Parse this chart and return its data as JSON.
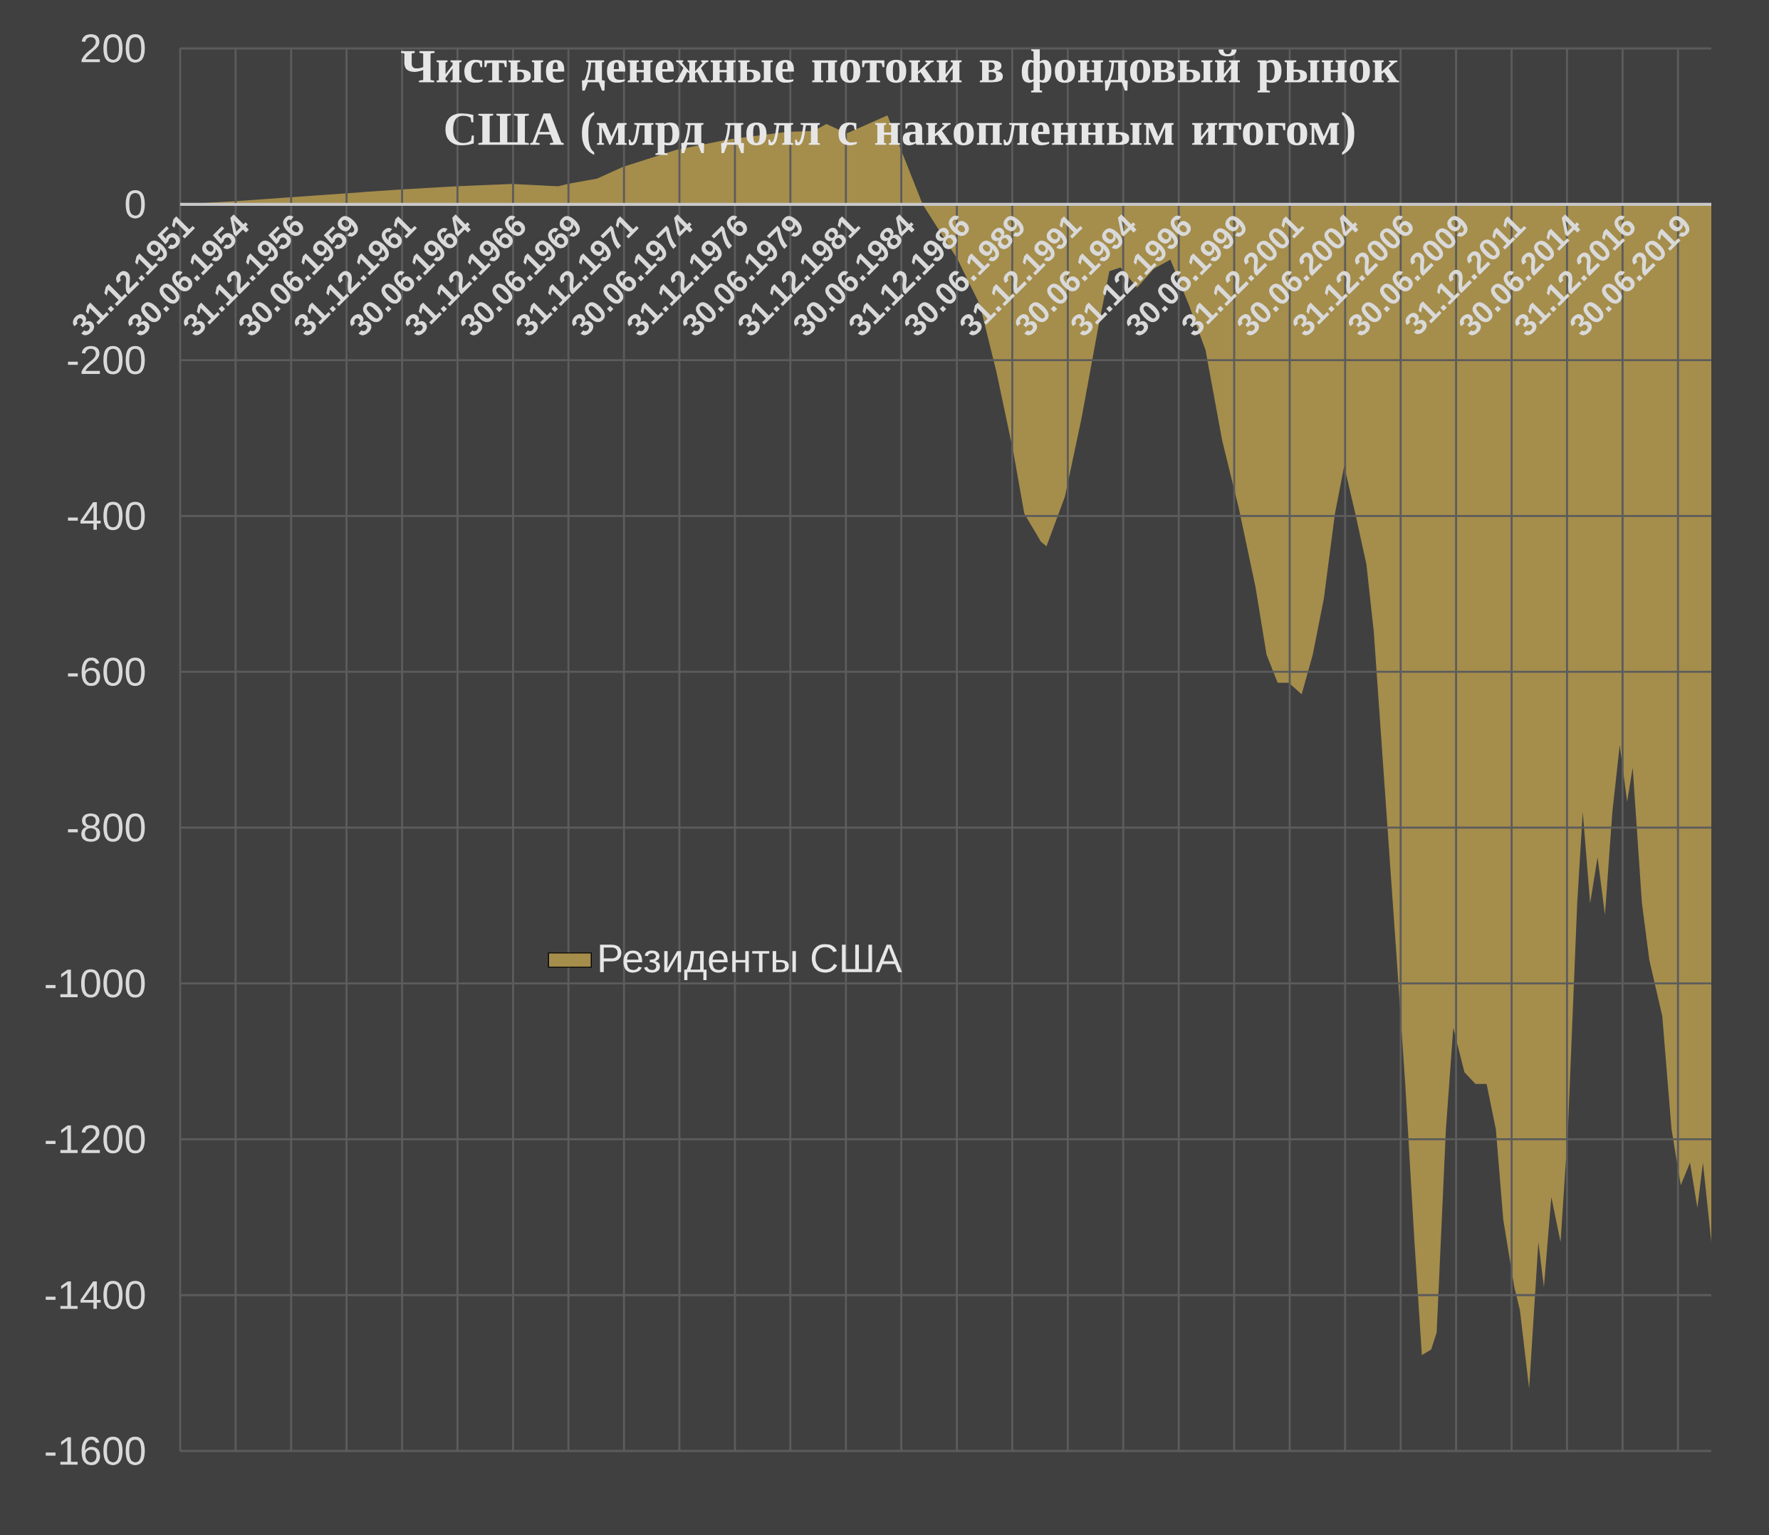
{
  "chart_data": {
    "type": "area",
    "title": "Чистые денежные потоки в фондовый рынок США (млрд долл с накопленным итогом)",
    "x": [
      "1951-12-31",
      "1954-06",
      "1956-12",
      "1959-06",
      "1961-12",
      "1964-06",
      "1966-12",
      "1969-01",
      "1969-06",
      "1970-10",
      "1971-12",
      "1974-05",
      "1976-11",
      "1979-05",
      "1980-07",
      "1981-02",
      "1982-01",
      "1983-11",
      "1985-06",
      "1987-01",
      "1988-01",
      "1988-10",
      "1989-07",
      "1990-01",
      "1990-10",
      "1991-01",
      "1991-11",
      "1992-08",
      "1993-05",
      "1993-11",
      "1994-05",
      "1995-02",
      "1995-11",
      "1996-08",
      "1997-06",
      "1998-03",
      "1998-12",
      "1999-09",
      "2000-06",
      "2000-12",
      "2001-06",
      "2001-12",
      "2002-07",
      "2003-01",
      "2003-07",
      "2004-01",
      "2004-06",
      "2004-12",
      "2005-06",
      "2005-10",
      "2006-04",
      "2006-10",
      "2007-03",
      "2007-08",
      "2007-12",
      "2008-05",
      "2008-08",
      "2009-01",
      "2009-05",
      "2009-11",
      "2010-05",
      "2010-11",
      "2011-04",
      "2011-08",
      "2012-02",
      "2012-05",
      "2012-10",
      "2013-03",
      "2013-06",
      "2013-10",
      "2014-03",
      "2014-07",
      "2014-12",
      "2015-03",
      "2015-07",
      "2015-11",
      "2016-03",
      "2016-07",
      "2016-11",
      "2017-03",
      "2017-06",
      "2017-11",
      "2018-03",
      "2018-10",
      "2019-03",
      "2019-08",
      "2020-01",
      "2020-05",
      "2020-08",
      "2020-12-31"
    ],
    "series": [
      {
        "name": "Резиденты США",
        "color": "#a58d4c",
        "values": [
          0,
          4,
          9,
          14,
          19,
          23,
          26,
          23,
          26,
          33,
          48,
          70,
          84,
          93,
          94,
          103,
          91,
          114,
          0,
          -71,
          -129,
          -216,
          -317,
          -397,
          -433,
          -439,
          -375,
          -274,
          -158,
          -86,
          -81,
          -107,
          -83,
          -71,
          -129,
          -187,
          -303,
          -390,
          -491,
          -578,
          -614,
          -614,
          -629,
          -578,
          -506,
          -397,
          -336,
          -397,
          -462,
          -549,
          -752,
          -955,
          -1129,
          -1332,
          -1477,
          -1470,
          -1448,
          -1187,
          -1057,
          -1114,
          -1129,
          -1129,
          -1187,
          -1303,
          -1390,
          -1419,
          -1520,
          -1332,
          -1390,
          -1274,
          -1332,
          -1187,
          -897,
          -780,
          -897,
          -838,
          -912,
          -780,
          -694,
          -767,
          -723,
          -897,
          -970,
          -1042,
          -1187,
          -1259,
          -1230,
          -1288,
          -1230,
          -1332
        ]
      }
    ],
    "xlim": [
      "1951-12-31",
      "2020-12-31"
    ],
    "xticks": [
      {
        "value": "1951-12-31",
        "label": "31.12.1951"
      },
      {
        "value": "1954-06-30",
        "label": "30.06.1954"
      },
      {
        "value": "1956-12-31",
        "label": "31.12.1956"
      },
      {
        "value": "1959-06-30",
        "label": "30.06.1959"
      },
      {
        "value": "1961-12-31",
        "label": "31.12.1961"
      },
      {
        "value": "1964-06-30",
        "label": "30.06.1964"
      },
      {
        "value": "1966-12-31",
        "label": "31.12.1966"
      },
      {
        "value": "1969-06-30",
        "label": "30.06.1969"
      },
      {
        "value": "1971-12-31",
        "label": "31.12.1971"
      },
      {
        "value": "1974-06-30",
        "label": "30.06.1974"
      },
      {
        "value": "1976-12-31",
        "label": "31.12.1976"
      },
      {
        "value": "1979-06-30",
        "label": "30.06.1979"
      },
      {
        "value": "1981-12-31",
        "label": "31.12.1981"
      },
      {
        "value": "1984-06-30",
        "label": "30.06.1984"
      },
      {
        "value": "1986-12-31",
        "label": "31.12.1986"
      },
      {
        "value": "1989-06-30",
        "label": "30.06.1989"
      },
      {
        "value": "1991-12-31",
        "label": "31.12.1991"
      },
      {
        "value": "1994-06-30",
        "label": "30.06.1994"
      },
      {
        "value": "1996-12-31",
        "label": "31.12.1996"
      },
      {
        "value": "1999-06-30",
        "label": "30.06.1999"
      },
      {
        "value": "2001-12-31",
        "label": "31.12.2001"
      },
      {
        "value": "2004-06-30",
        "label": "30.06.2004"
      },
      {
        "value": "2006-12-31",
        "label": "31.12.2006"
      },
      {
        "value": "2009-06-30",
        "label": "30.06.2009"
      },
      {
        "value": "2011-12-31",
        "label": "31.12.2011"
      },
      {
        "value": "2014-06-30",
        "label": "30.06.2014"
      },
      {
        "value": "2016-12-31",
        "label": "31.12.2016"
      },
      {
        "value": "2019-06-30",
        "label": "30.06.2019"
      }
    ],
    "ylim": [
      -1600,
      200
    ],
    "yticks": [
      -1600,
      -1400,
      -1200,
      -1000,
      -800,
      -600,
      -400,
      -200,
      0,
      200
    ],
    "grid": true,
    "legend": "center"
  }
}
